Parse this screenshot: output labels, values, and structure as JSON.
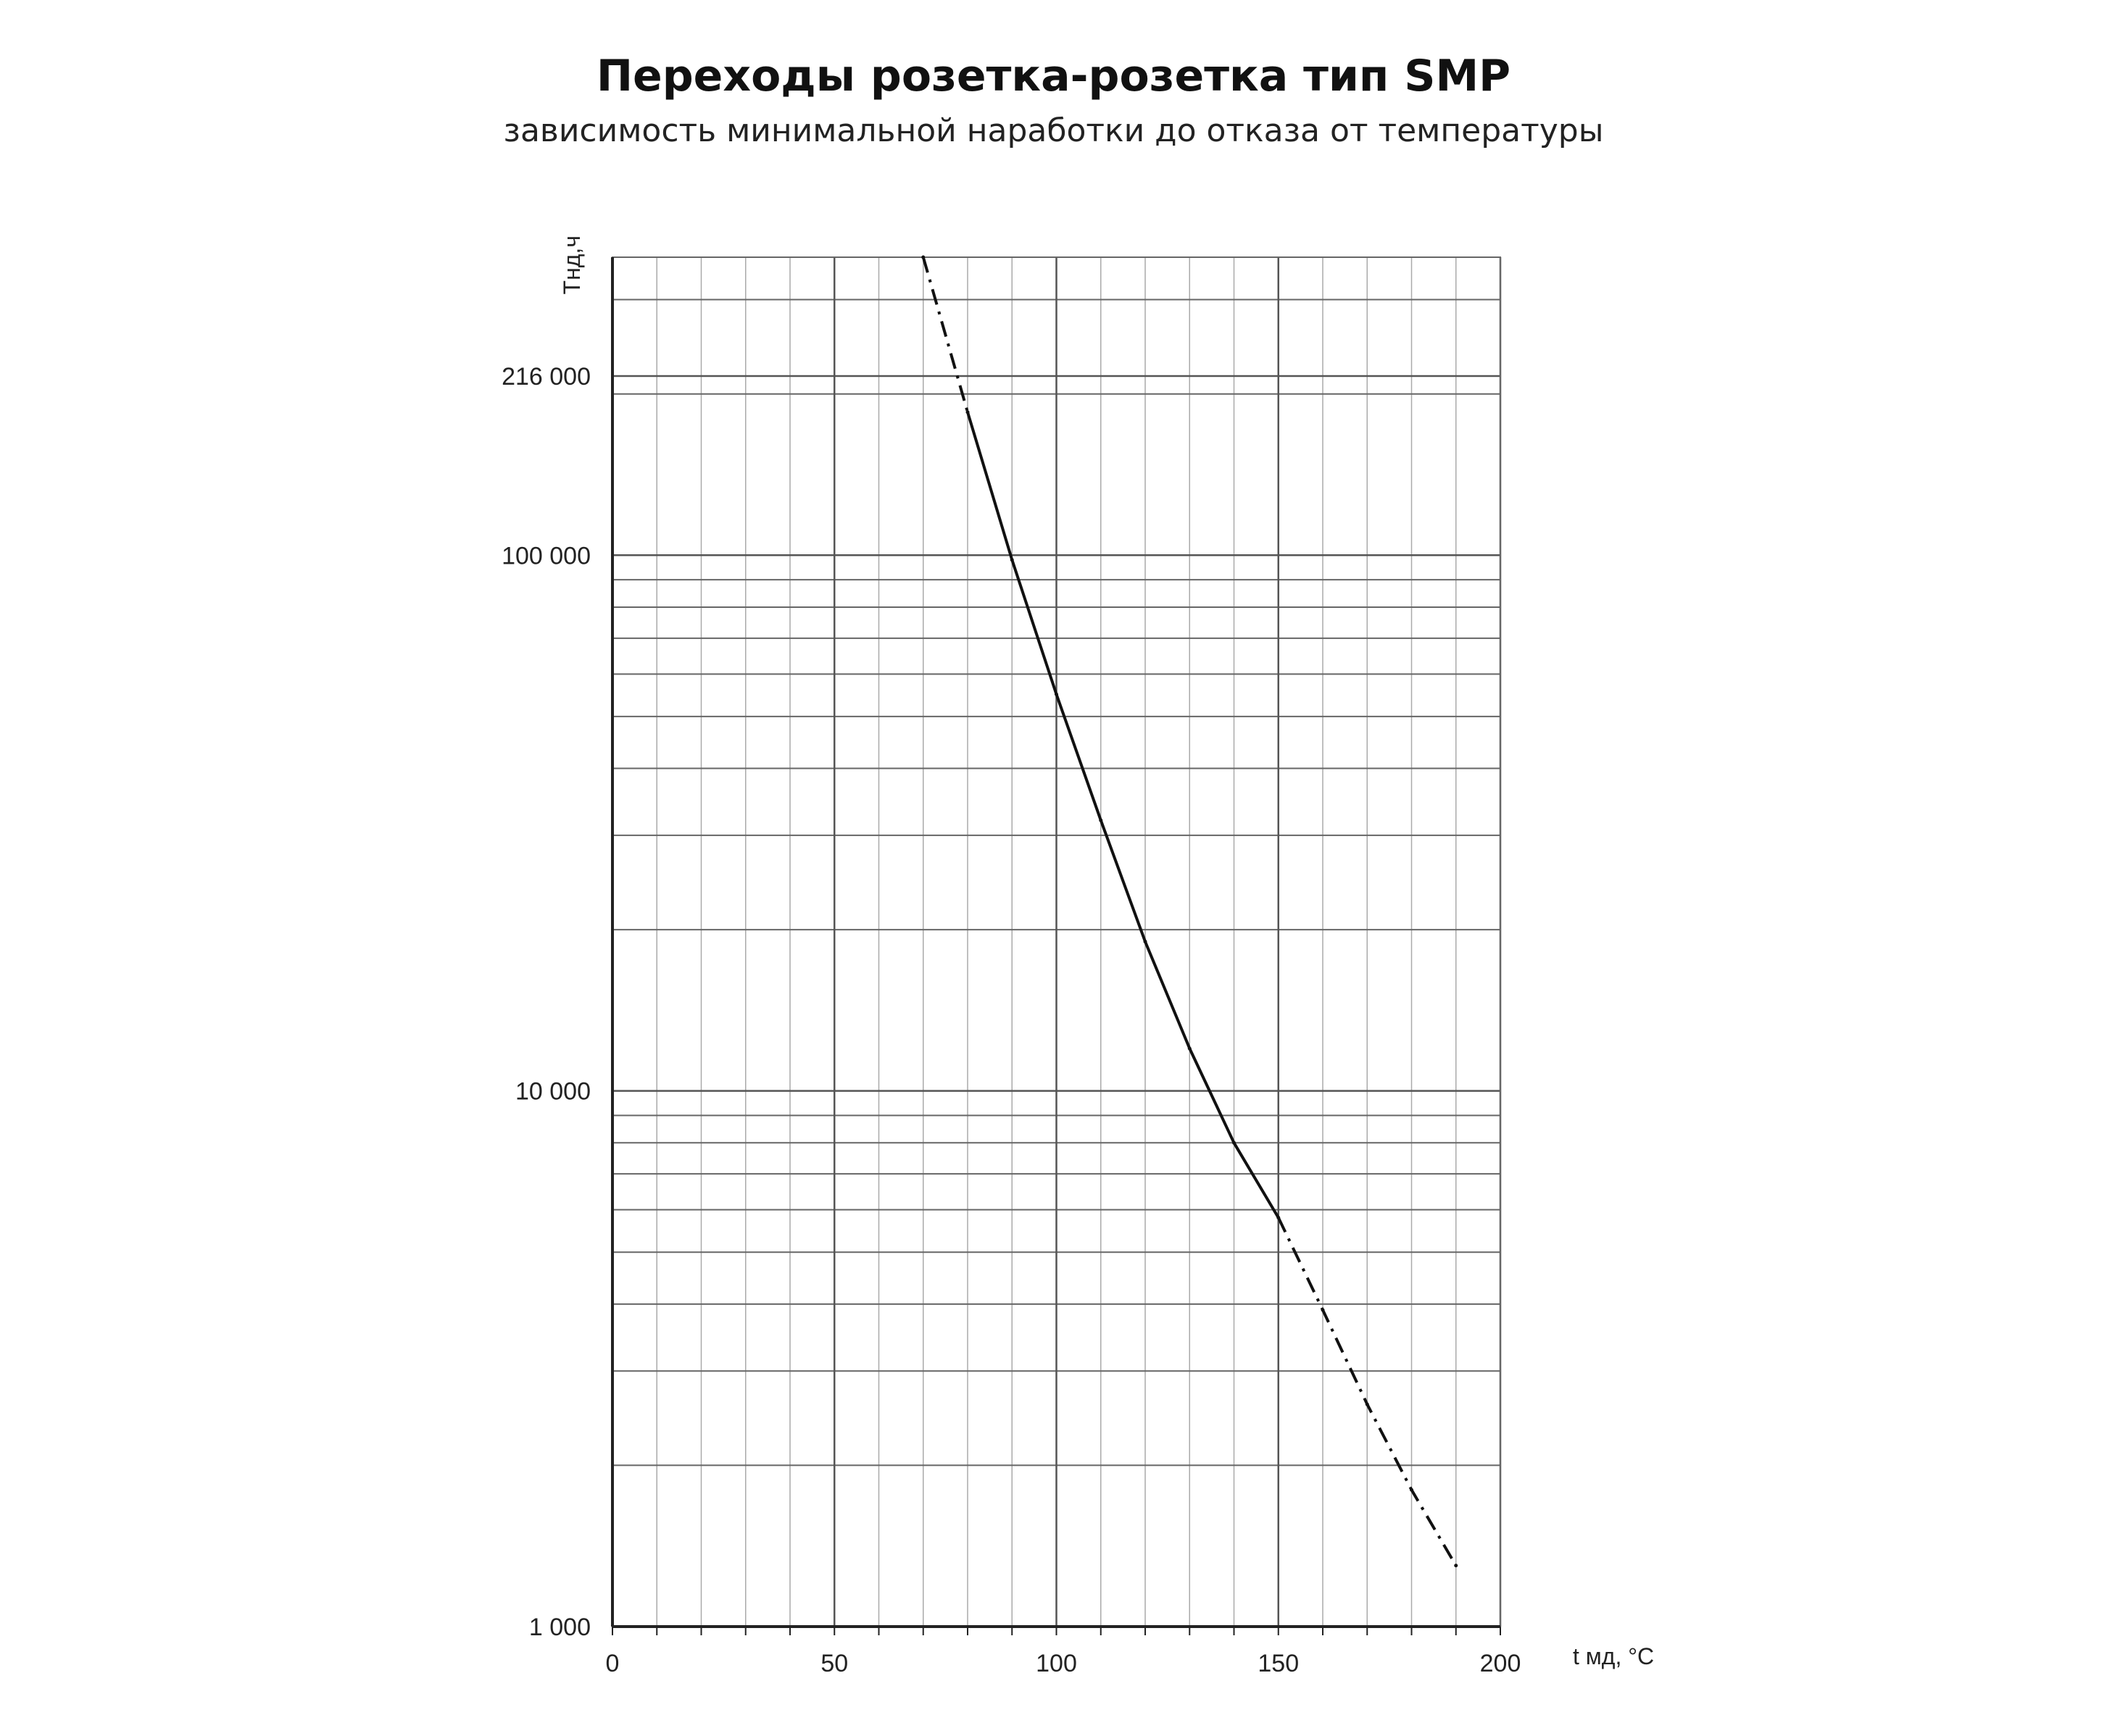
{
  "title": "Переходы розетка-розетка тип SMP",
  "subtitle": "зависимость минимальной наработки до отказа от температуры",
  "chart_data": {
    "type": "line",
    "xlabel": "t мд, °C",
    "ylabel": "Tнд,ч",
    "xlim": [
      0,
      200
    ],
    "ylim": [
      1000,
      400000
    ],
    "yscale": "log",
    "grid": true,
    "x_ticks": [
      0,
      50,
      100,
      150,
      200
    ],
    "x_tick_labels": [
      "0",
      "50",
      "100",
      "150",
      "200"
    ],
    "y_ticks": [
      1000,
      10000,
      100000,
      216000
    ],
    "y_tick_labels": [
      "1 000",
      "10 000",
      "100 000",
      "216 000"
    ],
    "series": [
      {
        "x": [
          70,
          80,
          90,
          100,
          110,
          120,
          130,
          140,
          150,
          160,
          170,
          180,
          190
        ],
        "values": [
          360000,
          185000,
          98000,
          55000,
          32000,
          19000,
          12000,
          8000,
          5800,
          3900,
          2600,
          1800,
          1300
        ],
        "segments": [
          {
            "x_from": 70,
            "x_to": 80,
            "style": "dashed"
          },
          {
            "x_from": 80,
            "x_to": 150,
            "style": "solid"
          },
          {
            "x_from": 150,
            "x_to": 190,
            "style": "dashed"
          }
        ]
      }
    ]
  }
}
